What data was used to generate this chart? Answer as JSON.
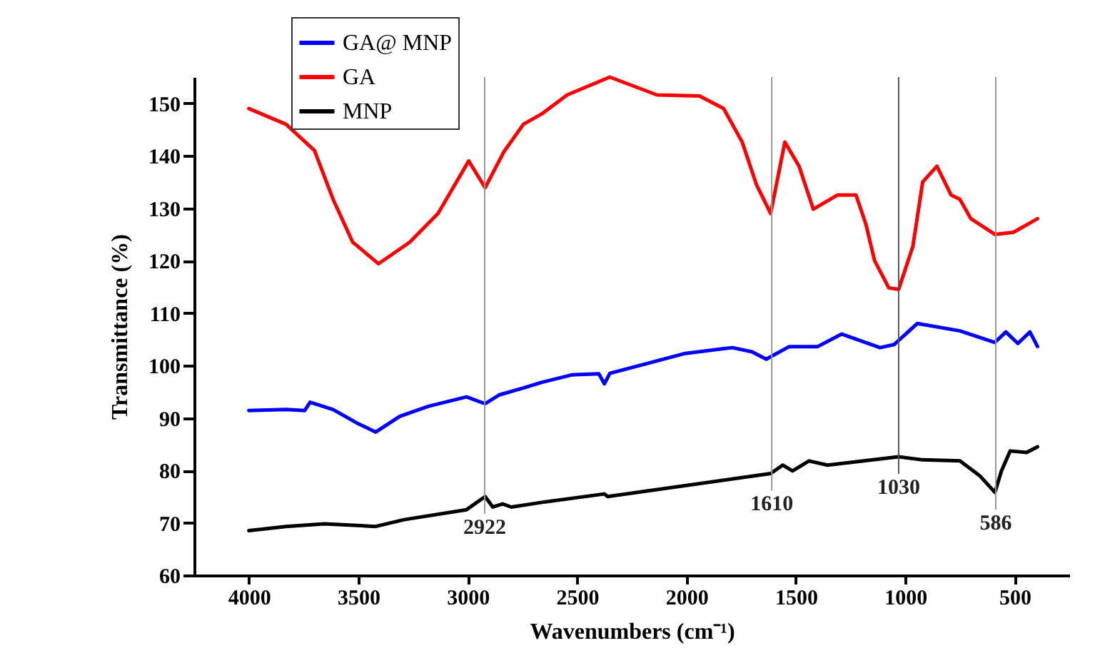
{
  "chart_data": {
    "type": "line",
    "xlabel": "Wavenumbers (cm⁻¹)",
    "ylabel": "Transmittance (%)",
    "xlim": [
      4250,
      250
    ],
    "xticks": [
      4000,
      3500,
      3000,
      2500,
      2000,
      1500,
      1000,
      500
    ],
    "ylim": [
      60,
      155
    ],
    "yticks": [
      60,
      70,
      80,
      90,
      100,
      110,
      120,
      130,
      140,
      150
    ],
    "grid": false,
    "legend": "top left",
    "marker": "none",
    "line_style": "solid",
    "series": [
      {
        "name": "GA@ MNP",
        "color": "#0000ff",
        "x": [
          4000,
          3830,
          3745,
          3720,
          3615,
          3505,
          3420,
          3310,
          3180,
          3005,
          2920,
          2855,
          2745,
          2660,
          2525,
          2400,
          2375,
          2350,
          2005,
          1790,
          1700,
          1635,
          1530,
          1400,
          1290,
          1115,
          1050,
          945,
          750,
          590,
          540,
          485,
          430,
          395
        ],
        "values": [
          91.4,
          91.6,
          91.4,
          93,
          91.6,
          89,
          87.3,
          90.3,
          92.2,
          94,
          92.7,
          94.4,
          95.7,
          96.8,
          98.2,
          98.4,
          96.5,
          98.5,
          102.3,
          103.4,
          102.6,
          101.2,
          103.6,
          103.6,
          106,
          103.4,
          104,
          108,
          106.6,
          104.4,
          106.4,
          104.2,
          106.4,
          103.6
        ]
      },
      {
        "name": "GA",
        "color": "#ff0000",
        "x": [
          4000,
          3830,
          3700,
          3615,
          3525,
          3407,
          3265,
          3135,
          2995,
          2920,
          2835,
          2745,
          2660,
          2545,
          2350,
          2135,
          1940,
          1830,
          1745,
          1680,
          1615,
          1550,
          1485,
          1420,
          1310,
          1225,
          1180,
          1140,
          1075,
          1030,
          965,
          920,
          855,
          790,
          750,
          700,
          590,
          505,
          395
        ],
        "values": [
          149,
          146,
          141,
          131.7,
          123.5,
          119.4,
          123.5,
          129,
          139,
          133.9,
          140.7,
          146,
          148,
          151.6,
          155,
          151.6,
          151.4,
          149,
          142.6,
          134.5,
          129,
          142.6,
          138,
          129.8,
          132.5,
          132.5,
          127,
          120,
          114.8,
          114.5,
          122.7,
          135,
          138,
          132.5,
          131.7,
          128,
          125,
          125.4,
          128
        ]
      },
      {
        "name": "MNP",
        "color": "#000000",
        "x": [
          4000,
          3830,
          3655,
          3420,
          3290,
          3005,
          2920,
          2885,
          2840,
          2800,
          2660,
          2375,
          2360,
          1615,
          1560,
          1515,
          1440,
          1355,
          1030,
          920,
          750,
          660,
          590,
          560,
          520,
          445,
          395
        ],
        "values": [
          68.5,
          69.3,
          69.8,
          69.3,
          70.6,
          72.5,
          75,
          73,
          73.6,
          73,
          73.9,
          75.5,
          75,
          79.4,
          81,
          79.9,
          81.8,
          81,
          82.6,
          82,
          81.8,
          79,
          75.8,
          79.9,
          83.7,
          83.4,
          84.5
        ]
      }
    ],
    "ref_lines": [
      {
        "axis": "x",
        "value": 2922,
        "label": "2922",
        "color": "#999999"
      },
      {
        "axis": "x",
        "value": 1610,
        "label": "1610",
        "color": "#999999"
      },
      {
        "axis": "x",
        "value": 1030,
        "label": "1030",
        "color": "#555555"
      },
      {
        "axis": "x",
        "value": 586,
        "label": "586",
        "color": "#999999"
      }
    ]
  }
}
